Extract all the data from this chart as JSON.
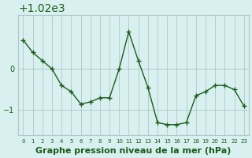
{
  "x": [
    0,
    1,
    2,
    3,
    4,
    5,
    6,
    7,
    8,
    9,
    10,
    11,
    12,
    13,
    14,
    15,
    16,
    17,
    18,
    19,
    20,
    21,
    22,
    23
  ],
  "y": [
    1020.7,
    1020.4,
    1020.2,
    1020.0,
    1019.6,
    1019.45,
    1019.15,
    1019.2,
    1019.3,
    1019.3,
    1020.0,
    1020.9,
    1020.2,
    1019.55,
    1018.7,
    1018.65,
    1018.65,
    1018.7,
    1019.35,
    1019.45,
    1019.6,
    1019.6,
    1019.5,
    1019.1
  ],
  "line_color": "#1a5c1a",
  "marker_color": "#1a5c1a",
  "bg_color": "#d8f0f0",
  "grid_color": "#b0c8c8",
  "xlabel": "Graphe pression niveau de la mer (hPa)",
  "xlabel_fontsize": 8,
  "yticks": [
    1019,
    1020
  ],
  "ylim": [
    1018.4,
    1021.3
  ],
  "xlim": [
    -0.5,
    23.5
  ],
  "title_color": "#1a5c1a",
  "tick_color": "#1a5c1a"
}
